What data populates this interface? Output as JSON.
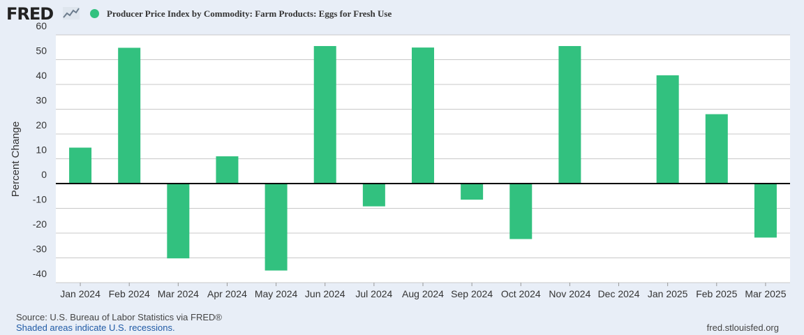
{
  "header": {
    "logo_text": "FRED",
    "series_title": "Producer Price Index by Commodity: Farm Products: Eggs for Fresh Use"
  },
  "colors": {
    "bar": "#32c17f",
    "grid": "#c8c8c8",
    "zero_line": "#000000",
    "plot_bg": "#ffffff",
    "page_bg": "#e8eef7"
  },
  "chart_data": {
    "type": "bar",
    "categories": [
      "Jan 2024",
      "Feb 2024",
      "Mar 2024",
      "Apr 2024",
      "May 2024",
      "Jun 2024",
      "Jul 2024",
      "Aug 2024",
      "Sep 2024",
      "Oct 2024",
      "Nov 2024",
      "Dec 2024",
      "Jan 2025",
      "Feb 2025",
      "Mar 2025"
    ],
    "values": [
      14.5,
      54.8,
      -30.2,
      11.0,
      -35.1,
      55.5,
      -9.2,
      54.9,
      -6.5,
      -22.4,
      55.5,
      0,
      43.7,
      28.0,
      -21.8
    ],
    "ylabel": "Percent Change",
    "ylim": [
      -40,
      60
    ],
    "yticks": [
      -40,
      -30,
      -20,
      -10,
      0,
      10,
      20,
      30,
      40,
      50,
      60
    ],
    "grid": true
  },
  "footer": {
    "source": "Source: U.S. Bureau of Labor Statistics via FRED®",
    "recessions": "Shaded areas indicate U.S. recessions.",
    "url": "fred.stlouisfed.org"
  }
}
